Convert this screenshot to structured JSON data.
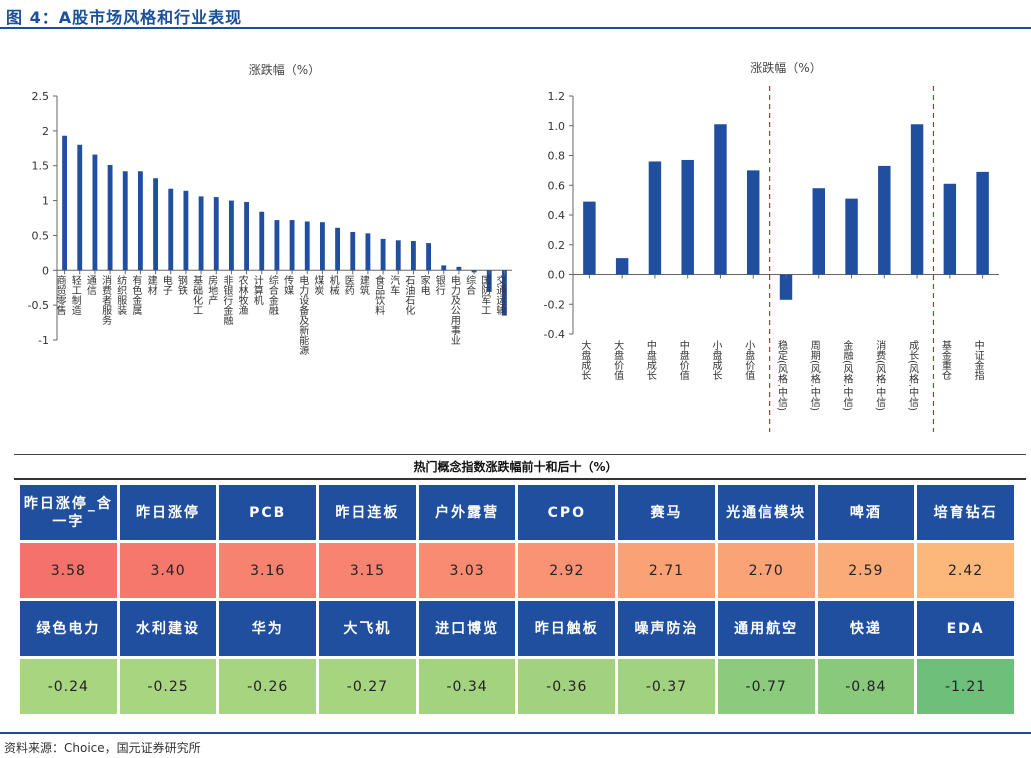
{
  "title": "图 4：A股市场风格和行业表现",
  "source": "资料来源：Choice，国元证券研究所",
  "colors": {
    "bar": "#1f4f9e",
    "divider": "#c0302b",
    "header": "#1f4f9e"
  },
  "chart_data": [
    {
      "type": "bar",
      "title": "涨跌幅（%）",
      "ylim": [
        -1,
        2.5
      ],
      "yticks": [
        -1,
        -0.5,
        0,
        0.5,
        1,
        1.5,
        2,
        2.5
      ],
      "ytick_labels": [
        "-1",
        "-0.5",
        "0",
        "0.5",
        "1",
        "1.5",
        "2",
        "2.5"
      ],
      "categories": [
        "商贸零售",
        "轻工制造",
        "通信",
        "消费者服务",
        "纺织服装",
        "有色金属",
        "建材",
        "电子",
        "钢铁",
        "基础化工",
        "房地产",
        "非银行金融",
        "农林牧渔",
        "计算机",
        "综合金融",
        "传媒",
        "电力设备及新能源",
        "煤炭",
        "机械",
        "医药",
        "建筑",
        "食品饮料",
        "汽车",
        "石油石化",
        "家电",
        "银行",
        "电力及公用事业",
        "综合",
        "国防军工",
        "交通运输"
      ],
      "values": [
        1.93,
        1.8,
        1.66,
        1.51,
        1.42,
        1.42,
        1.32,
        1.17,
        1.14,
        1.06,
        1.05,
        1.0,
        0.98,
        0.84,
        0.72,
        0.72,
        0.7,
        0.69,
        0.61,
        0.55,
        0.53,
        0.45,
        0.43,
        0.42,
        0.39,
        0.07,
        0.05,
        -0.03,
        -0.31,
        -0.65
      ]
    },
    {
      "type": "bar",
      "title": "涨跌幅（%）",
      "ylim": [
        -0.4,
        1.2
      ],
      "yticks": [
        -0.4,
        -0.2,
        0,
        0.2,
        0.4,
        0.6,
        0.8,
        1.0,
        1.2
      ],
      "ytick_labels": [
        "-0.4",
        "-0.2",
        "0.0",
        "0.2",
        "0.4",
        "0.6",
        "0.8",
        "1.0",
        "1.2"
      ],
      "categories": [
        "大盘成长",
        "大盘价值",
        "中盘成长",
        "中盘价值",
        "小盘成长",
        "小盘价值",
        "稳定(风格.中信)",
        "周期(风格.中信)",
        "金融(风格.中信)",
        "消费(风格.中信)",
        "成长(风格.中信)",
        "基金重仓",
        "中证金指"
      ],
      "values": [
        0.49,
        0.11,
        0.76,
        0.77,
        1.01,
        0.7,
        -0.17,
        0.58,
        0.51,
        0.73,
        1.01,
        0.61,
        0.69
      ],
      "dividers_after_index": [
        5,
        10
      ]
    }
  ],
  "hot_table": {
    "title": "热门概念指数涨跌幅前十和后十（%）",
    "top_names": [
      "昨日涨停_含一字",
      "昨日涨停",
      "PCB",
      "昨日连板",
      "户外露营",
      "CPO",
      "赛马",
      "光通信模块",
      "啤酒",
      "培育钻石"
    ],
    "top_values": [
      "3.58",
      "3.40",
      "3.16",
      "3.15",
      "3.03",
      "2.92",
      "2.71",
      "2.70",
      "2.59",
      "2.42"
    ],
    "top_colors": [
      "#f5716b",
      "#f6786d",
      "#f7826f",
      "#f78370",
      "#f88b72",
      "#f99373",
      "#faa275",
      "#faa376",
      "#fbab77",
      "#fcb77a"
    ],
    "bottom_names": [
      "绿色电力",
      "水利建设",
      "华为",
      "大飞机",
      "进口博览",
      "昨日触板",
      "噪声防治",
      "通用航空",
      "快递",
      "EDA"
    ],
    "bottom_values": [
      "-0.24",
      "-0.25",
      "-0.26",
      "-0.27",
      "-0.34",
      "-0.36",
      "-0.37",
      "-0.77",
      "-0.84",
      "-1.21"
    ],
    "bottom_colors": [
      "#a8d57f",
      "#a8d57f",
      "#a7d47f",
      "#a7d47f",
      "#a3d37f",
      "#a2d27f",
      "#a1d27f",
      "#8ccb7d",
      "#88c97c",
      "#6dbf7a"
    ]
  }
}
